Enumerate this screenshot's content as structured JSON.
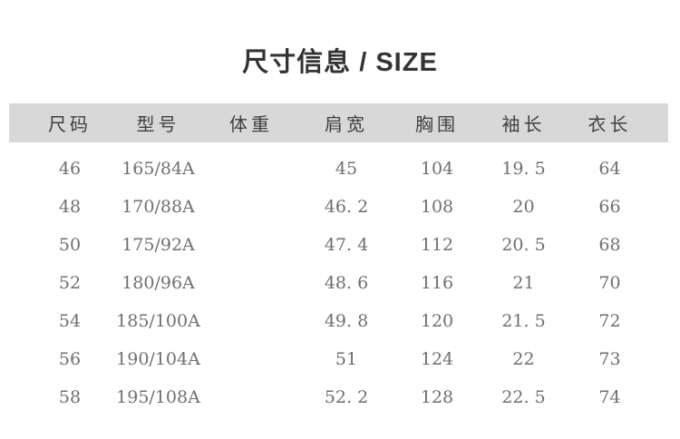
{
  "title": "尺寸信息 / SIZE",
  "table": {
    "headers": [
      "尺码",
      "型号",
      "体重",
      "肩宽",
      "胸围",
      "袖长",
      "衣长"
    ],
    "rows": [
      [
        "46",
        "165/84A",
        "",
        "45",
        "104",
        "19. 5",
        "64"
      ],
      [
        "48",
        "170/88A",
        "",
        "46. 2",
        "108",
        "20",
        "66"
      ],
      [
        "50",
        "175/92A",
        "",
        "47. 4",
        "112",
        "20. 5",
        "68"
      ],
      [
        "52",
        "180/96A",
        "",
        "48. 6",
        "116",
        "21",
        "70"
      ],
      [
        "54",
        "185/100A",
        "",
        "49. 8",
        "120",
        "21. 5",
        "72"
      ],
      [
        "56",
        "190/104A",
        "",
        "51",
        "124",
        "22",
        "73"
      ],
      [
        "58",
        "195/108A",
        "",
        "52. 2",
        "128",
        "22. 5",
        "74"
      ]
    ]
  },
  "colors": {
    "title_text": "#333333",
    "header_bg": "#d8d8d8",
    "header_text": "#3f3f3f",
    "body_text": "#6f6f6f",
    "page_bg": "#ffffff"
  }
}
